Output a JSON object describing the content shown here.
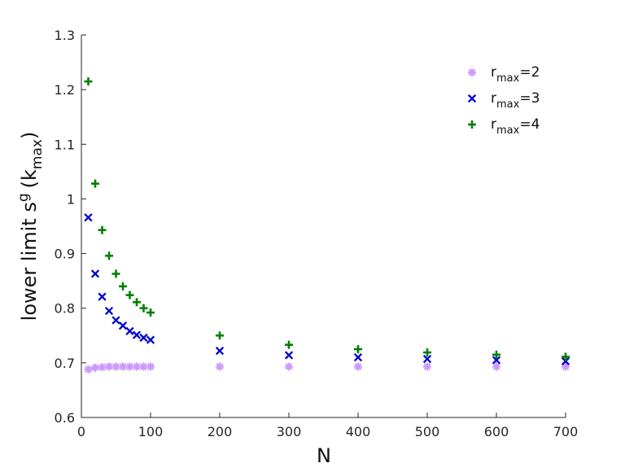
{
  "chart_data": {
    "type": "scatter",
    "title": "",
    "xlabel": "N",
    "ylabel_main": "lower limit  s",
    "ylabel_sup": "g",
    "ylabel_paren_open": "(k",
    "ylabel_sub": "max",
    "ylabel_paren_close": ")",
    "xlim": [
      0,
      700
    ],
    "ylim": [
      0.6,
      1.3
    ],
    "xticks": [
      0,
      100,
      200,
      300,
      400,
      500,
      600,
      700
    ],
    "yticks": [
      0.6,
      0.7,
      0.8,
      0.9,
      1.0,
      1.1,
      1.2,
      1.3
    ],
    "xtick_labels": [
      "0",
      "100",
      "200",
      "300",
      "400",
      "500",
      "600",
      "700"
    ],
    "ytick_labels": [
      "0.6",
      "0.7",
      "0.8",
      "0.9",
      "1",
      "1.1",
      "1.2",
      "1.3"
    ],
    "grid": false,
    "legend_position": "top-right",
    "series": [
      {
        "name_base": "r",
        "name_sub": "max",
        "name_suffix": "=2",
        "marker": "asterisk",
        "color": "#cc99ff",
        "x": [
          10,
          20,
          30,
          40,
          50,
          60,
          70,
          80,
          90,
          100,
          200,
          300,
          400,
          500,
          600,
          700
        ],
        "y": [
          0.688,
          0.691,
          0.692,
          0.693,
          0.693,
          0.693,
          0.693,
          0.693,
          0.693,
          0.693,
          0.693,
          0.693,
          0.693,
          0.693,
          0.693,
          0.693
        ]
      },
      {
        "name_base": "r",
        "name_sub": "max",
        "name_suffix": "=3",
        "marker": "x",
        "color": "#0000cc",
        "x": [
          10,
          20,
          30,
          40,
          50,
          60,
          70,
          80,
          90,
          100,
          200,
          300,
          400,
          500,
          600,
          700
        ],
        "y": [
          0.966,
          0.863,
          0.821,
          0.795,
          0.778,
          0.768,
          0.758,
          0.751,
          0.746,
          0.742,
          0.722,
          0.714,
          0.71,
          0.707,
          0.705,
          0.703
        ]
      },
      {
        "name_base": "r",
        "name_sub": "max",
        "name_suffix": "=4",
        "marker": "plus",
        "color": "#008000",
        "x": [
          10,
          20,
          30,
          40,
          50,
          60,
          70,
          80,
          90,
          100,
          200,
          300,
          400,
          500,
          600,
          700
        ],
        "y": [
          1.215,
          1.028,
          0.943,
          0.896,
          0.863,
          0.84,
          0.824,
          0.811,
          0.8,
          0.792,
          0.75,
          0.733,
          0.725,
          0.719,
          0.715,
          0.711
        ]
      }
    ]
  }
}
